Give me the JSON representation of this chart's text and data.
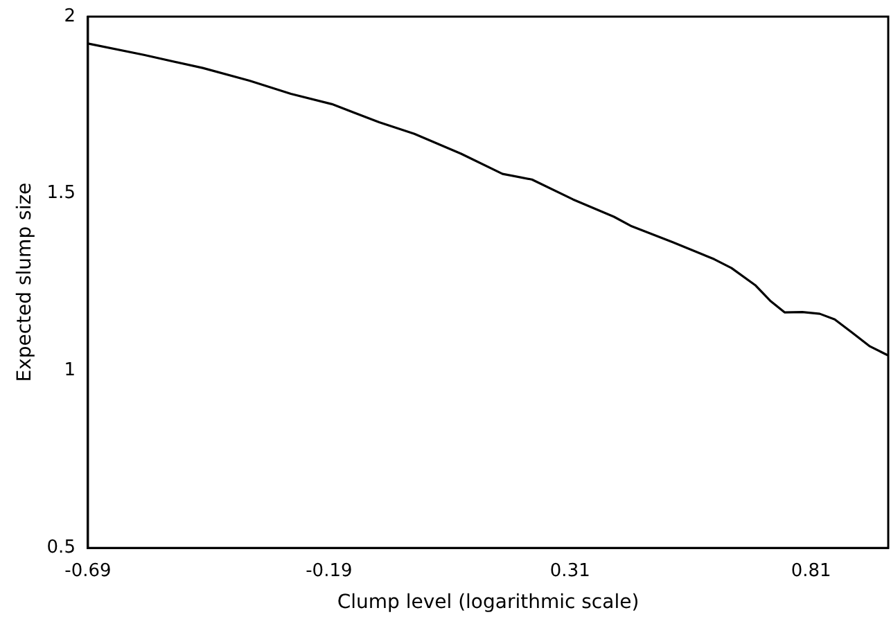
{
  "chart_data": {
    "type": "line",
    "xlabel": "Clump level (logarithmic scale)",
    "ylabel": "Expected slump size",
    "xlim": [
      -0.69,
      0.97
    ],
    "xticks": [
      -0.69,
      -0.19,
      0.31,
      0.81
    ],
    "ylim": [
      0.5,
      2
    ],
    "yticks": [
      0.5,
      1,
      1.5,
      2
    ],
    "grid": false,
    "legend": false,
    "marker": "none",
    "series": [
      {
        "color": "#000000",
        "x": [
          -0.69,
          -0.574,
          -0.452,
          -0.355,
          -0.269,
          -0.184,
          -0.086,
          -0.013,
          0.084,
          0.17,
          0.231,
          0.316,
          0.401,
          0.438,
          0.523,
          0.609,
          0.645,
          0.694,
          0.725,
          0.755,
          0.792,
          0.828,
          0.859,
          0.895,
          0.932,
          0.969
        ],
        "values": [
          1.924,
          1.892,
          1.855,
          1.819,
          1.782,
          1.753,
          1.702,
          1.669,
          1.613,
          1.556,
          1.54,
          1.484,
          1.435,
          1.408,
          1.363,
          1.315,
          1.29,
          1.242,
          1.198,
          1.165,
          1.166,
          1.161,
          1.145,
          1.108,
          1.069,
          1.044
        ]
      }
    ]
  }
}
